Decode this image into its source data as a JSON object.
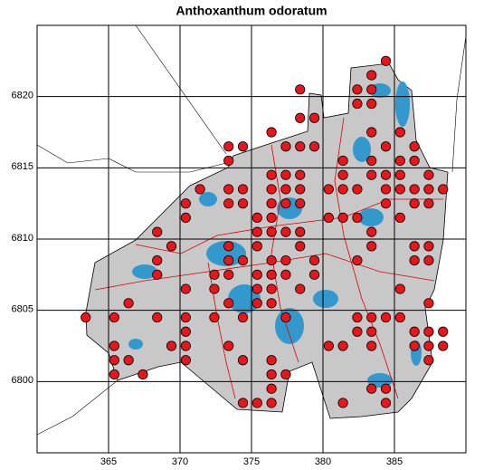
{
  "chart_data": {
    "type": "scatter",
    "title": "Anthoxanthum odoratum",
    "xlim": [
      360,
      390
    ],
    "ylim": [
      6795,
      6825
    ],
    "xticks": [
      365,
      370,
      375,
      380,
      385
    ],
    "yticks": [
      6800,
      6805,
      6810,
      6815,
      6820
    ],
    "grid": true,
    "color": "#e8161b",
    "x": [
      384.4,
      383.4,
      378.4,
      382.4,
      383.4,
      382.4,
      383.4,
      378.4,
      379.4,
      376.4,
      383.4,
      385.4,
      373.4,
      374.4,
      377.4,
      378.4,
      379.4,
      384.4,
      386.4,
      373.4,
      381.4,
      383.4,
      385.4,
      386.4,
      376.4,
      377.4,
      378.4,
      381.4,
      383.4,
      384.4,
      385.4,
      387.4,
      371.4,
      373.4,
      374.4,
      376.4,
      377.4,
      378.4,
      380.4,
      381.4,
      382.4,
      384.4,
      385.4,
      386.4,
      387.4,
      388.4,
      370.4,
      373.4,
      374.4,
      376.4,
      377.4,
      378.4,
      384.4,
      386.4,
      387.4,
      370.4,
      375.4,
      376.4,
      380.4,
      381.4,
      382.4,
      385.4,
      368.4,
      375.4,
      376.4,
      377.4,
      378.4,
      383.4,
      369.4,
      373.4,
      375.4,
      378.4,
      383.4,
      386.4,
      387.4,
      368.4,
      373.4,
      374.4,
      376.4,
      377.4,
      379.4,
      382.4,
      386.4,
      387.4,
      368.4,
      372.4,
      373.4,
      375.4,
      376.4,
      377.4,
      379.4,
      370.4,
      372.4,
      375.4,
      376.4,
      378.4,
      385.4,
      366.4,
      373.4,
      375.4,
      376.4,
      387.4,
      363.4,
      365.4,
      368.4,
      370.4,
      372.4,
      374.4,
      377.4,
      382.4,
      383.4,
      384.4,
      385.4,
      370.4,
      382.4,
      383.4,
      386.4,
      387.4,
      388.4,
      365.4,
      369.4,
      370.4,
      373.4,
      380.4,
      381.4,
      383.4,
      386.4,
      387.4,
      388.4,
      365.4,
      366.4,
      370.4,
      374.4,
      376.4,
      387.4,
      365.4,
      367.4,
      376.4,
      377.4,
      376.4,
      383.4,
      384.4,
      374.4,
      375.4,
      376.4,
      381.4,
      384.4
    ],
    "values": [
      6822.5,
      6821.5,
      6820.5,
      6820.5,
      6820.5,
      6819.5,
      6819.5,
      6818.5,
      6818.5,
      6817.5,
      6817.5,
      6817.5,
      6816.5,
      6816.5,
      6816.5,
      6816.5,
      6816.5,
      6816.5,
      6816.5,
      6815.5,
      6815.5,
      6815.5,
      6815.5,
      6815.5,
      6814.5,
      6814.5,
      6814.5,
      6814.5,
      6814.5,
      6814.5,
      6814.5,
      6814.5,
      6813.5,
      6813.5,
      6813.5,
      6813.5,
      6813.5,
      6813.5,
      6813.5,
      6813.5,
      6813.5,
      6813.5,
      6813.5,
      6813.5,
      6813.5,
      6813.5,
      6812.5,
      6812.5,
      6812.5,
      6812.5,
      6812.5,
      6812.5,
      6812.5,
      6812.5,
      6812.5,
      6811.5,
      6811.5,
      6811.5,
      6811.5,
      6811.5,
      6811.5,
      6811.5,
      6810.5,
      6810.5,
      6810.5,
      6810.5,
      6810.5,
      6810.5,
      6809.5,
      6809.5,
      6809.5,
      6809.5,
      6809.5,
      6809.5,
      6809.5,
      6808.5,
      6808.5,
      6808.5,
      6808.5,
      6808.5,
      6808.5,
      6808.5,
      6808.5,
      6808.5,
      6807.5,
      6807.5,
      6807.5,
      6807.5,
      6807.5,
      6807.5,
      6807.5,
      6806.5,
      6806.5,
      6806.5,
      6806.5,
      6806.5,
      6806.5,
      6805.5,
      6805.5,
      6805.5,
      6805.5,
      6805.5,
      6804.5,
      6804.5,
      6804.5,
      6804.5,
      6804.5,
      6804.5,
      6804.5,
      6804.5,
      6804.5,
      6804.5,
      6804.5,
      6803.5,
      6803.5,
      6803.5,
      6803.5,
      6803.5,
      6803.5,
      6802.5,
      6802.5,
      6802.5,
      6802.5,
      6802.5,
      6802.5,
      6802.5,
      6802.5,
      6802.5,
      6802.5,
      6801.5,
      6801.5,
      6801.5,
      6801.5,
      6801.5,
      6801.5,
      6800.5,
      6800.5,
      6800.5,
      6800.5,
      6799.5,
      6799.5,
      6799.5,
      6798.5,
      6798.5,
      6798.5,
      6798.5,
      6798.5
    ]
  }
}
